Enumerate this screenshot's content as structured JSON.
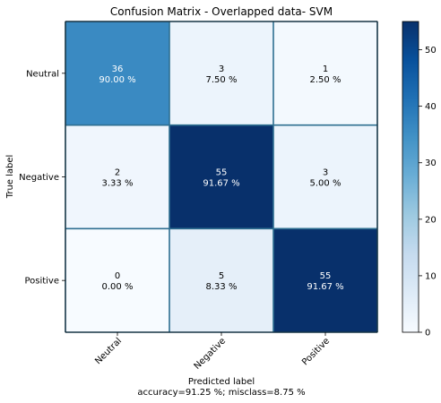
{
  "chart_data": {
    "type": "heatmap",
    "title": "Confusion Matrix - Overlapped data- SVM",
    "xlabel": "Predicted label",
    "xlabel_extra": "accuracy=91.25 %; misclass=8.75 %",
    "ylabel": "True label",
    "x_categories": [
      "Neutral",
      "Negative",
      "Positive"
    ],
    "y_categories": [
      "Neutral",
      "Negative",
      "Positive"
    ],
    "counts": [
      [
        36,
        3,
        1
      ],
      [
        2,
        55,
        3
      ],
      [
        0,
        5,
        55
      ]
    ],
    "percents": [
      [
        "90.00 %",
        "7.50 %",
        "2.50 %"
      ],
      [
        "3.33 %",
        "91.67 %",
        "5.00 %"
      ],
      [
        "0.00 %",
        "8.33 %",
        "91.67 %"
      ]
    ],
    "colormap": "Blues",
    "colorbar": {
      "min": 0,
      "max": 55,
      "ticks": [
        0,
        10,
        20,
        30,
        40,
        50
      ]
    },
    "colors": {
      "low": "#f7fbff",
      "high": "#08306b",
      "grid": "#2e6f91"
    }
  }
}
